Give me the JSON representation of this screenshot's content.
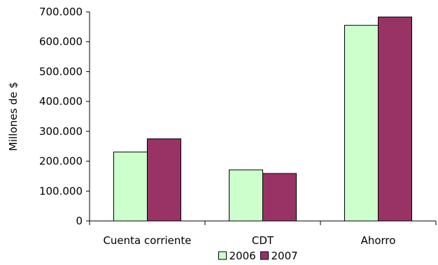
{
  "chart_data": {
    "type": "bar",
    "categories": [
      "Cuenta corriente",
      "CDT",
      "Ahorro"
    ],
    "series": [
      {
        "name": "2006",
        "values": [
          231000,
          171000,
          655000
        ],
        "color": "#ccffcc"
      },
      {
        "name": "2007",
        "values": [
          275000,
          159000,
          683000
        ],
        "color": "#993366"
      }
    ],
    "title": "",
    "xlabel": "",
    "ylabel": "Millones de $",
    "ylim": [
      0,
      700000
    ],
    "yticks": [
      0,
      100000,
      200000,
      300000,
      400000,
      500000,
      600000,
      700000
    ],
    "ytick_labels": [
      "0",
      "100.000",
      "200.000",
      "300.000",
      "400.000",
      "500.000",
      "600.000",
      "700.000"
    ],
    "grid": false,
    "legend_position": "bottom"
  }
}
